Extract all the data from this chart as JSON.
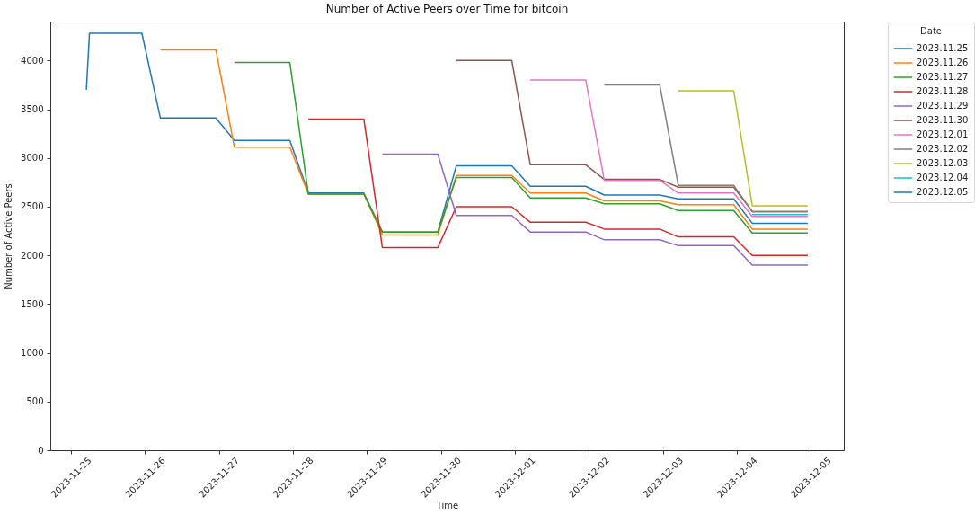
{
  "chart_data": {
    "type": "line",
    "title": "Number of Active Peers over Time for bitcoin",
    "xlabel": "Time",
    "ylabel": "Number of Active Peers",
    "legend_title": "Date",
    "legend": "top right",
    "line_style": "solid",
    "xlim": [
      "2023-11-24T17:18",
      "2023-12-05T10:42"
    ],
    "xticks": [
      "2023-11-25",
      "2023-11-26",
      "2023-11-27",
      "2023-11-28",
      "2023-11-29",
      "2023-11-30",
      "2023-12-01",
      "2023-12-02",
      "2023-12-03",
      "2023-12-04",
      "2023-12-05"
    ],
    "ylim": [
      0,
      4400
    ],
    "yticks": [
      0,
      500,
      1000,
      1500,
      2000,
      2500,
      3000,
      3500,
      4000
    ],
    "series": [
      {
        "name": "2023.11.25",
        "color": "#1f77b4",
        "x": [
          "2023-11-25T05:00",
          "2023-11-25T06:00",
          "2023-11-25T23:00",
          "2023-11-26T05:00",
          "2023-11-26T23:00",
          "2023-11-27T05:00",
          "2023-11-27T23:00",
          "2023-11-28T05:00",
          "2023-11-28T23:00",
          "2023-11-29T05:00",
          "2023-11-29T23:00",
          "2023-11-30T05:00",
          "2023-11-30T23:00",
          "2023-12-01T05:00",
          "2023-12-01T23:00",
          "2023-12-02T05:00",
          "2023-12-02T23:00",
          "2023-12-03T05:00",
          "2023-12-03T23:00",
          "2023-12-04T05:00",
          "2023-12-04T23:00"
        ],
        "values": [
          3700,
          4280,
          4280,
          3410,
          3410,
          3180,
          3180,
          2640,
          2640,
          2240,
          2240,
          2920,
          2920,
          2710,
          2710,
          2620,
          2620,
          2580,
          2580,
          2330,
          2330
        ]
      },
      {
        "name": "2023.11.26",
        "color": "#ff7f0e",
        "x": [
          "2023-11-26T05:00",
          "2023-11-26T23:00",
          "2023-11-27T05:00",
          "2023-11-27T23:00",
          "2023-11-28T05:00",
          "2023-11-28T23:00",
          "2023-11-29T05:00",
          "2023-11-29T23:00",
          "2023-11-30T05:00",
          "2023-11-30T23:00",
          "2023-12-01T05:00",
          "2023-12-01T23:00",
          "2023-12-02T05:00",
          "2023-12-02T23:00",
          "2023-12-03T05:00",
          "2023-12-03T23:00",
          "2023-12-04T05:00",
          "2023-12-04T23:00"
        ],
        "values": [
          4110,
          4110,
          3110,
          3110,
          2630,
          2630,
          2210,
          2210,
          2820,
          2820,
          2640,
          2640,
          2560,
          2560,
          2520,
          2520,
          2270,
          2270
        ]
      },
      {
        "name": "2023.11.27",
        "color": "#2ca02c",
        "x": [
          "2023-11-27T05:00",
          "2023-11-27T23:00",
          "2023-11-28T05:00",
          "2023-11-28T23:00",
          "2023-11-29T05:00",
          "2023-11-29T23:00",
          "2023-11-30T05:00",
          "2023-11-30T23:00",
          "2023-12-01T05:00",
          "2023-12-01T23:00",
          "2023-12-02T05:00",
          "2023-12-02T23:00",
          "2023-12-03T05:00",
          "2023-12-03T23:00",
          "2023-12-04T05:00",
          "2023-12-04T23:00"
        ],
        "values": [
          3980,
          3980,
          2630,
          2630,
          2240,
          2240,
          2800,
          2800,
          2590,
          2590,
          2530,
          2530,
          2460,
          2460,
          2230,
          2230
        ]
      },
      {
        "name": "2023.11.28",
        "color": "#d62728",
        "x": [
          "2023-11-28T05:00",
          "2023-11-28T23:00",
          "2023-11-29T05:00",
          "2023-11-29T23:00",
          "2023-11-30T05:00",
          "2023-11-30T23:00",
          "2023-12-01T05:00",
          "2023-12-01T23:00",
          "2023-12-02T05:00",
          "2023-12-02T23:00",
          "2023-12-03T05:00",
          "2023-12-03T23:00",
          "2023-12-04T05:00",
          "2023-12-04T23:00"
        ],
        "values": [
          3400,
          3400,
          2080,
          2080,
          2500,
          2500,
          2340,
          2340,
          2270,
          2270,
          2190,
          2190,
          2000,
          2000
        ]
      },
      {
        "name": "2023.11.29",
        "color": "#9467bd",
        "x": [
          "2023-11-29T05:00",
          "2023-11-29T23:00",
          "2023-11-30T05:00",
          "2023-11-30T23:00",
          "2023-12-01T05:00",
          "2023-12-01T23:00",
          "2023-12-02T05:00",
          "2023-12-02T23:00",
          "2023-12-03T05:00",
          "2023-12-03T23:00",
          "2023-12-04T05:00",
          "2023-12-04T23:00"
        ],
        "values": [
          3040,
          3040,
          2410,
          2410,
          2240,
          2240,
          2160,
          2160,
          2100,
          2100,
          1900,
          1900
        ]
      },
      {
        "name": "2023.11.30",
        "color": "#8c564b",
        "x": [
          "2023-11-30T05:00",
          "2023-11-30T23:00",
          "2023-12-01T05:00",
          "2023-12-01T23:00",
          "2023-12-02T05:00",
          "2023-12-02T23:00",
          "2023-12-03T05:00",
          "2023-12-03T23:00",
          "2023-12-04T05:00",
          "2023-12-04T23:00"
        ],
        "values": [
          4000,
          4000,
          2930,
          2930,
          2780,
          2780,
          2700,
          2700,
          2450,
          2450
        ]
      },
      {
        "name": "2023.12.01",
        "color": "#e377c2",
        "x": [
          "2023-12-01T05:00",
          "2023-12-01T23:00",
          "2023-12-02T05:00",
          "2023-12-02T23:00",
          "2023-12-03T05:00",
          "2023-12-03T23:00",
          "2023-12-04T05:00",
          "2023-12-04T23:00"
        ],
        "values": [
          3800,
          3800,
          2770,
          2770,
          2640,
          2640,
          2400,
          2400
        ]
      },
      {
        "name": "2023.12.02",
        "color": "#7f7f7f",
        "x": [
          "2023-12-02T05:00",
          "2023-12-02T23:00",
          "2023-12-03T05:00",
          "2023-12-03T23:00",
          "2023-12-04T05:00",
          "2023-12-04T23:00"
        ],
        "values": [
          3750,
          3750,
          2720,
          2720,
          2450,
          2450
        ]
      },
      {
        "name": "2023.12.03",
        "color": "#bcbd22",
        "x": [
          "2023-12-03T05:00",
          "2023-12-03T23:00",
          "2023-12-04T05:00",
          "2023-12-04T23:00"
        ],
        "values": [
          3690,
          3690,
          2510,
          2510
        ]
      },
      {
        "name": "2023.12.04",
        "color": "#17becf",
        "x": [
          "2023-12-04T05:00",
          "2023-12-04T23:00"
        ],
        "values": [
          2420,
          2420
        ]
      },
      {
        "name": "2023.12.05",
        "color": "#1f77b4"
      }
    ]
  }
}
